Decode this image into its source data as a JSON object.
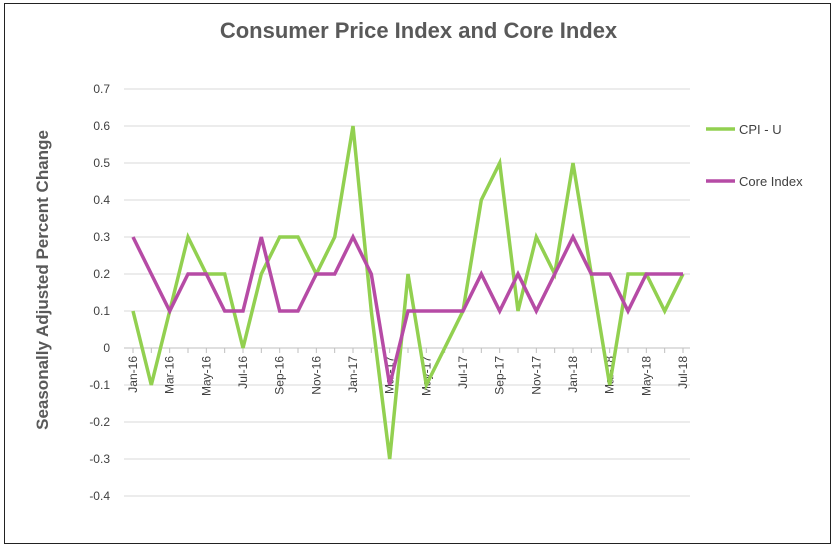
{
  "chart_data": {
    "type": "line",
    "title": "Consumer Price Index and Core Index",
    "ylabel": "Seasonally Adjusted Percent Change",
    "xlabel": "",
    "ylim": [
      -0.4,
      0.7
    ],
    "yticks": [
      "0.7",
      "0.6",
      "0.5",
      "0.4",
      "0.3",
      "0.2",
      "0.1",
      "0",
      "-0.1",
      "-0.2",
      "-0.3",
      "-0.4"
    ],
    "ytick_values": [
      0.7,
      0.6,
      0.5,
      0.4,
      0.3,
      0.2,
      0.1,
      0,
      -0.1,
      -0.2,
      -0.3,
      -0.4
    ],
    "x": [
      "Jan-16",
      "Feb-16",
      "Mar-16",
      "Apr-16",
      "May-16",
      "Jun-16",
      "Jul-16",
      "Aug-16",
      "Sep-16",
      "Oct-16",
      "Nov-16",
      "Dec-16",
      "Jan-17",
      "Feb-17",
      "Mar-17",
      "Apr-17",
      "May-17",
      "Jun-17",
      "Jul-17",
      "Aug-17",
      "Sep-17",
      "Oct-17",
      "Nov-17",
      "Dec-17",
      "Jan-18",
      "Feb-18",
      "Mar-18",
      "Apr-18",
      "May-18",
      "Jun-18",
      "Jul-18"
    ],
    "xtick_labels": [
      "Jan-16",
      "Mar-16",
      "May-16",
      "Jul-16",
      "Sep-16",
      "Nov-16",
      "Jan-17",
      "Mar-17",
      "May-17",
      "Jul-17",
      "Sep-17",
      "Nov-17",
      "Jan-18",
      "Mar-18",
      "May-18",
      "Jul-18"
    ],
    "grid": true,
    "legend_position": "right",
    "series": [
      {
        "name": "CPI - U",
        "color": "#92D050",
        "values": [
          0.1,
          -0.1,
          0.1,
          0.3,
          0.2,
          0.2,
          0.0,
          0.2,
          0.3,
          0.3,
          0.2,
          0.3,
          0.6,
          0.1,
          -0.3,
          0.2,
          -0.1,
          0.0,
          0.1,
          0.4,
          0.5,
          0.1,
          0.3,
          0.2,
          0.5,
          0.2,
          -0.1,
          0.2,
          0.2,
          0.1,
          0.2
        ]
      },
      {
        "name": "Core Index",
        "color": "#B64BA5",
        "values": [
          0.3,
          0.2,
          0.1,
          0.2,
          0.2,
          0.1,
          0.1,
          0.3,
          0.1,
          0.1,
          0.2,
          0.2,
          0.3,
          0.2,
          -0.1,
          0.1,
          0.1,
          0.1,
          0.1,
          0.2,
          0.1,
          0.2,
          0.1,
          0.2,
          0.3,
          0.2,
          0.2,
          0.1,
          0.2,
          0.2,
          0.2
        ]
      }
    ]
  }
}
